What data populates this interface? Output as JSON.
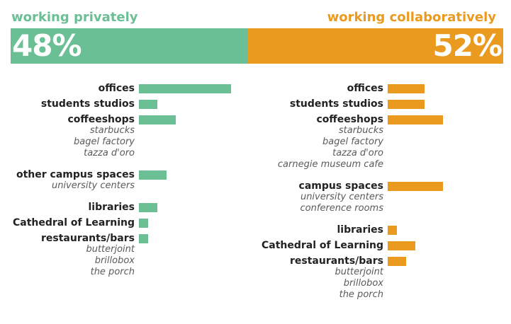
{
  "chart_data": [
    {
      "type": "bar",
      "title": "working privately",
      "percent_label": "48%",
      "percent": 48,
      "color": "#6bbf95",
      "rows": [
        {
          "category": "offices",
          "value": 10,
          "examples": []
        },
        {
          "category": "students studios",
          "value": 2,
          "examples": []
        },
        {
          "category": "coffeeshops",
          "value": 4,
          "examples": [
            "starbucks",
            "bagel factory",
            "tazza d'oro"
          ]
        },
        {
          "category": "other campus spaces",
          "value": 3,
          "examples": [
            "university centers"
          ]
        },
        {
          "category": "libraries",
          "value": 2,
          "examples": []
        },
        {
          "category": "Cathedral of Learning",
          "value": 1,
          "examples": []
        },
        {
          "category": "restaurants/bars",
          "value": 1,
          "examples": [
            "butterjoint",
            "brillobox",
            "the porch"
          ]
        }
      ]
    },
    {
      "type": "bar",
      "title": "working collaboratively",
      "percent_label": "52%",
      "percent": 52,
      "color": "#ea9a1e",
      "rows": [
        {
          "category": "offices",
          "value": 4,
          "examples": []
        },
        {
          "category": "students studios",
          "value": 4,
          "examples": []
        },
        {
          "category": "coffeeshops",
          "value": 6,
          "examples": [
            "starbucks",
            "bagel factory",
            "tazza d'oro",
            "carnegie museum cafe"
          ]
        },
        {
          "category": "campus spaces",
          "value": 6,
          "examples": [
            "university centers",
            "conference rooms"
          ]
        },
        {
          "category": "libraries",
          "value": 1,
          "examples": []
        },
        {
          "category": "Cathedral of Learning",
          "value": 3,
          "examples": []
        },
        {
          "category": "restaurants/bars",
          "value": 2,
          "examples": [
            "butterjoint",
            "brillobox",
            "the porch"
          ]
        }
      ]
    }
  ]
}
